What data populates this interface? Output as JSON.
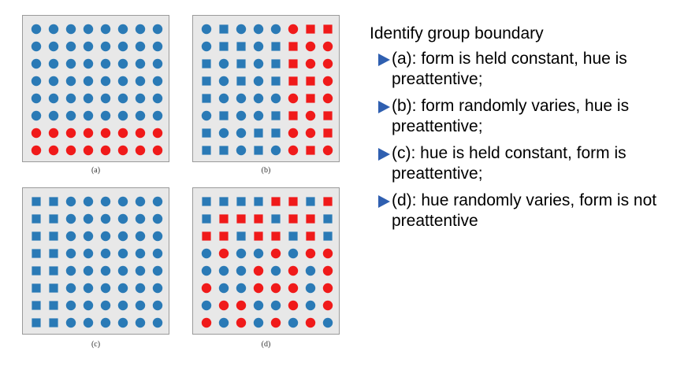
{
  "figure": {
    "colors": {
      "blue": "#2a7ab6",
      "red": "#f01a1a",
      "panel_bg": "#e8e8e8"
    },
    "panels": [
      {
        "id": "a",
        "caption": "(a)",
        "grid": [
          "bc bc bc bc bc bc bc bc",
          "bc bc bc bc bc bc bc bc",
          "bc bc bc bc bc bc bc bc",
          "bc bc bc bc bc bc bc bc",
          "bc bc bc bc bc bc bc bc",
          "bc bc bc bc bc bc bc bc",
          "rc rc rc rc rc rc rc rc",
          "rc rc rc rc rc rc rc rc"
        ]
      },
      {
        "id": "b",
        "caption": "(b)",
        "grid": [
          "bc bs bc bc bc rc rs rs",
          "bc bs bs bc bs rs rc rc",
          "bs bc bs bc bs rs rc rc",
          "bs bc bs bc bs rs rs rc",
          "bs bc bc bc bc rc rs rc",
          "bc bs bc bc bs rs rc rs",
          "bs bc bc bs bs rc rc rs",
          "bs bs bc bs bc rc rs rc"
        ]
      },
      {
        "id": "c",
        "caption": "(c)",
        "grid": [
          "bs bs bc bc bc bc bc bc",
          "bs bs bc bc bc bc bc bc",
          "bs bs bc bc bc bc bc bc",
          "bs bs bc bc bc bc bc bc",
          "bs bs bc bc bc bc bc bc",
          "bs bs bc bc bc bc bc bc",
          "bs bs bc bc bc bc bc bc",
          "bs bs bc bc bc bc bc bc"
        ]
      },
      {
        "id": "d",
        "caption": "(d)",
        "grid": [
          "bs bs bs bs rs rs bs rs",
          "bs rs rs rs bs rs rs bs",
          "rs rs bs rs rs bs rs bs",
          "bc rc bc bc rc bc rc rc",
          "bc bc bc rc bc rc bc rc",
          "rc bc bc rc rc rc bc rc",
          "bc rc rc bc bc rc bc rc",
          "rc bc rc bc rc bc rc bc"
        ]
      }
    ]
  },
  "text": {
    "heading": "Identify group boundary",
    "bullets": [
      "(a): form is held constant, hue is preattentive;",
      "(b): form randomly varies, hue is preattentive;",
      "(c): hue is held constant, form is preattentive;",
      "(d): hue randomly varies, form is not  preattentive"
    ],
    "bullet_icon": "right-triangle-arrow-icon",
    "bullet_color": "#2f5fb0"
  }
}
